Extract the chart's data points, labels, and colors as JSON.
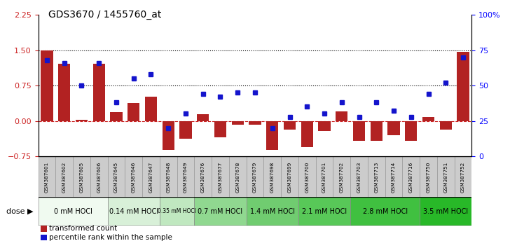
{
  "title": "GDS3670 / 1455760_at",
  "samples": [
    "GSM387601",
    "GSM387602",
    "GSM387605",
    "GSM387606",
    "GSM387645",
    "GSM387646",
    "GSM387647",
    "GSM387648",
    "GSM387649",
    "GSM387676",
    "GSM387677",
    "GSM387678",
    "GSM387679",
    "GSM387698",
    "GSM387699",
    "GSM387700",
    "GSM387701",
    "GSM387702",
    "GSM387703",
    "GSM387713",
    "GSM387714",
    "GSM387716",
    "GSM387750",
    "GSM387751",
    "GSM387752"
  ],
  "bar_values": [
    1.5,
    1.22,
    0.03,
    1.22,
    0.18,
    0.38,
    0.52,
    -0.62,
    -0.38,
    0.14,
    -0.35,
    -0.08,
    -0.08,
    -0.62,
    -0.18,
    -0.55,
    -0.22,
    0.2,
    -0.42,
    -0.42,
    -0.3,
    -0.42,
    0.08,
    -0.18,
    1.47
  ],
  "blue_values": [
    68,
    66,
    50,
    66,
    38,
    55,
    58,
    20,
    30,
    44,
    42,
    45,
    45,
    20,
    28,
    35,
    30,
    38,
    28,
    38,
    32,
    28,
    44,
    52,
    70
  ],
  "dose_groups": [
    {
      "label": "0 mM HOCl",
      "start": 0,
      "end": 3,
      "color": "#f0faf0"
    },
    {
      "label": "0.14 mM HOCl",
      "start": 4,
      "end": 6,
      "color": "#d8f0d8"
    },
    {
      "label": "0.35 mM HOCl",
      "start": 7,
      "end": 8,
      "color": "#c0e8c0"
    },
    {
      "label": "0.7 mM HOCl",
      "start": 9,
      "end": 11,
      "color": "#90d890"
    },
    {
      "label": "1.4 mM HOCl",
      "start": 12,
      "end": 14,
      "color": "#70cc70"
    },
    {
      "label": "2.1 mM HOCl",
      "start": 15,
      "end": 17,
      "color": "#58c858"
    },
    {
      "label": "2.8 mM HOCl",
      "start": 18,
      "end": 21,
      "color": "#40c040"
    },
    {
      "label": "3.5 mM HOCl",
      "start": 22,
      "end": 24,
      "color": "#28b828"
    }
  ],
  "ylim_left": [
    -0.75,
    2.25
  ],
  "yticks_left": [
    -0.75,
    0,
    0.75,
    1.5,
    2.25
  ],
  "ylim_right": [
    0,
    100
  ],
  "yticks_right": [
    0,
    25,
    50,
    75,
    100
  ],
  "hlines": [
    0.75,
    1.5
  ],
  "bar_color": "#b22222",
  "blue_color": "#1414cc",
  "zero_line_color": "#cc2222",
  "bg_color": "#ffffff",
  "plot_bg": "#ffffff",
  "legend_bar": "transformed count",
  "legend_blue": "percentile rank within the sample",
  "sample_box_color": "#cccccc",
  "sample_box_edge": "#999999",
  "dose_edge_color": "#888888",
  "black_border": "#000000"
}
